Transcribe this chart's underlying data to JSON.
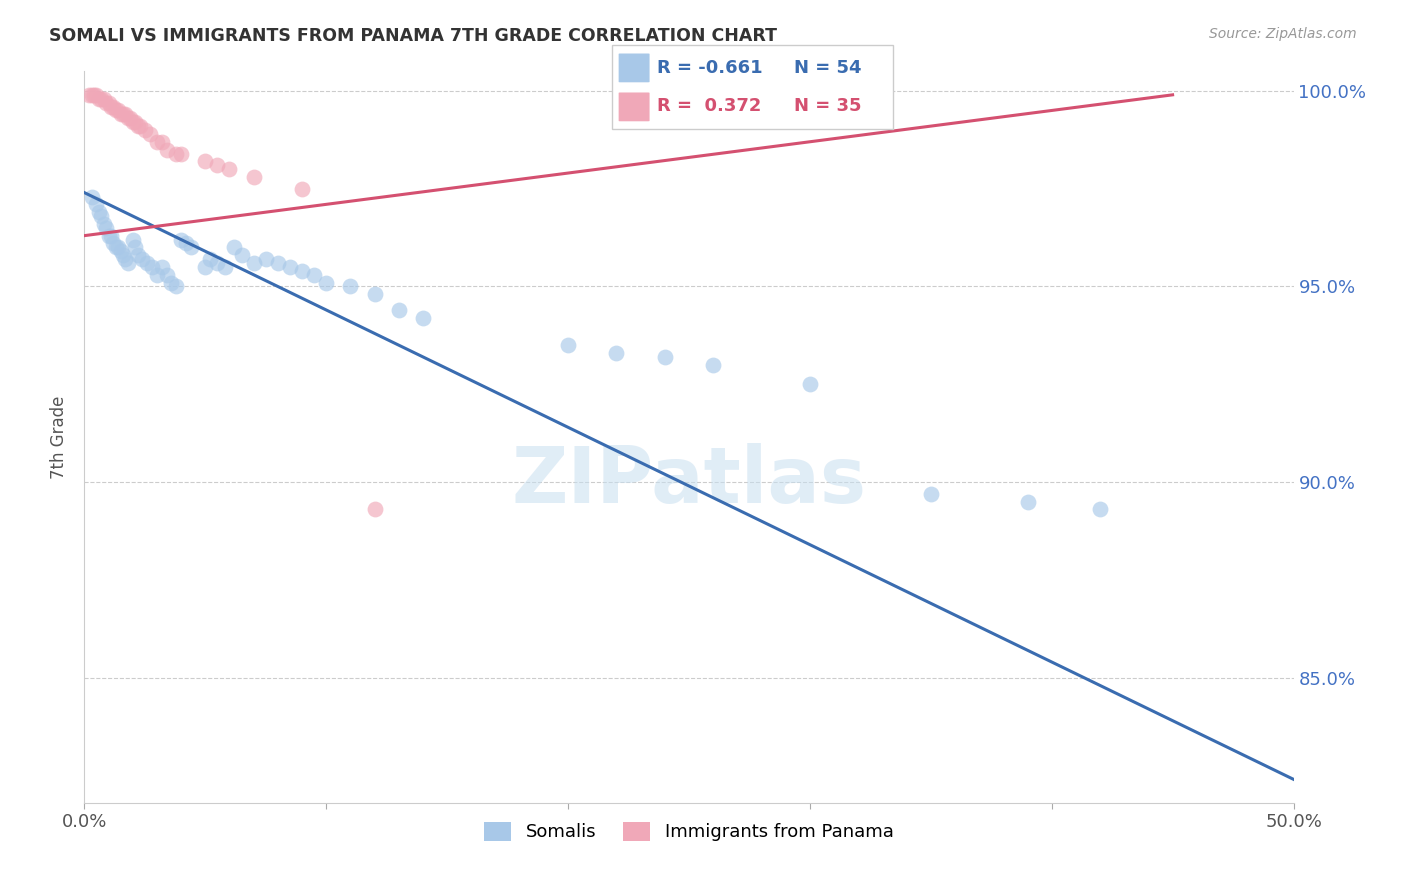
{
  "title": "SOMALI VS IMMIGRANTS FROM PANAMA 7TH GRADE CORRELATION CHART",
  "source": "Source: ZipAtlas.com",
  "ylabel": "7th Grade",
  "xlim": [
    0.0,
    0.5
  ],
  "ylim": [
    0.818,
    1.005
  ],
  "ytick_positions": [
    0.85,
    0.9,
    0.95,
    1.0
  ],
  "ytick_labels": [
    "85.0%",
    "90.0%",
    "95.0%",
    "100.0%"
  ],
  "xticks": [
    0.0,
    0.1,
    0.2,
    0.3,
    0.4,
    0.5
  ],
  "xtick_labels": [
    "0.0%",
    "",
    "",
    "",
    "",
    "50.0%"
  ],
  "legend_r_blue": "-0.661",
  "legend_n_blue": "54",
  "legend_r_pink": "0.372",
  "legend_n_pink": "35",
  "blue_color": "#A8C8E8",
  "pink_color": "#F0A8B8",
  "line_blue_color": "#3A6CB0",
  "line_pink_color": "#D45070",
  "watermark": "ZIPatlas",
  "somali_x": [
    0.003,
    0.005,
    0.006,
    0.007,
    0.008,
    0.009,
    0.01,
    0.011,
    0.012,
    0.013,
    0.014,
    0.015,
    0.016,
    0.017,
    0.018,
    0.02,
    0.021,
    0.022,
    0.024,
    0.026,
    0.028,
    0.03,
    0.032,
    0.034,
    0.036,
    0.038,
    0.04,
    0.042,
    0.044,
    0.05,
    0.052,
    0.055,
    0.058,
    0.062,
    0.065,
    0.07,
    0.075,
    0.08,
    0.085,
    0.09,
    0.095,
    0.1,
    0.11,
    0.12,
    0.13,
    0.14,
    0.2,
    0.22,
    0.24,
    0.26,
    0.3,
    0.35,
    0.39,
    0.42
  ],
  "somali_y": [
    0.973,
    0.971,
    0.969,
    0.968,
    0.966,
    0.965,
    0.963,
    0.963,
    0.961,
    0.96,
    0.96,
    0.959,
    0.958,
    0.957,
    0.956,
    0.962,
    0.96,
    0.958,
    0.957,
    0.956,
    0.955,
    0.953,
    0.955,
    0.953,
    0.951,
    0.95,
    0.962,
    0.961,
    0.96,
    0.955,
    0.957,
    0.956,
    0.955,
    0.96,
    0.958,
    0.956,
    0.957,
    0.956,
    0.955,
    0.954,
    0.953,
    0.951,
    0.95,
    0.948,
    0.944,
    0.942,
    0.935,
    0.933,
    0.932,
    0.93,
    0.925,
    0.897,
    0.895,
    0.893
  ],
  "panama_x": [
    0.002,
    0.003,
    0.004,
    0.005,
    0.006,
    0.007,
    0.008,
    0.009,
    0.01,
    0.011,
    0.012,
    0.013,
    0.014,
    0.015,
    0.016,
    0.017,
    0.018,
    0.019,
    0.02,
    0.021,
    0.022,
    0.023,
    0.025,
    0.027,
    0.03,
    0.032,
    0.034,
    0.038,
    0.04,
    0.05,
    0.055,
    0.06,
    0.07,
    0.09,
    0.12
  ],
  "panama_y": [
    0.999,
    0.999,
    0.999,
    0.999,
    0.998,
    0.998,
    0.998,
    0.997,
    0.997,
    0.996,
    0.996,
    0.995,
    0.995,
    0.994,
    0.994,
    0.994,
    0.993,
    0.993,
    0.992,
    0.992,
    0.991,
    0.991,
    0.99,
    0.989,
    0.987,
    0.987,
    0.985,
    0.984,
    0.984,
    0.982,
    0.981,
    0.98,
    0.978,
    0.975,
    0.893
  ],
  "blue_trendline_x": [
    0.0,
    0.5
  ],
  "blue_trendline_y": [
    0.974,
    0.824
  ],
  "pink_trendline_x": [
    0.0,
    0.45
  ],
  "pink_trendline_y": [
    0.963,
    0.999
  ]
}
